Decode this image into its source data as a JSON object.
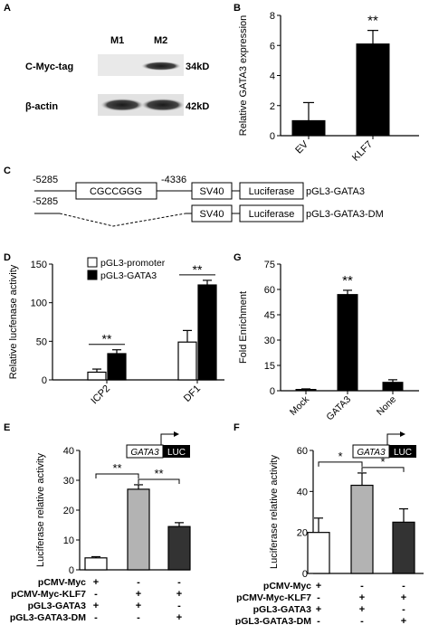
{
  "panels": {
    "A": {
      "letter": "A",
      "lanes": [
        "M1",
        "M2"
      ],
      "rows": [
        {
          "label": "C-Myc-tag",
          "size": "34kD"
        },
        {
          "label": "β-actin",
          "size": "42kD"
        }
      ]
    },
    "C": {
      "letter": "C",
      "row1": {
        "start": "-5285",
        "box": "CGCCGGG",
        "end": "-4336",
        "sv40": "SV40",
        "luc": "Luciferase",
        "name": "pGL3-GATA3"
      },
      "row2": {
        "start": "-5285",
        "sv40": "SV40",
        "luc": "Luciferase",
        "name": "pGL3-GATA3-DM"
      }
    },
    "E": {
      "letter": "E",
      "construct_gene": "GATA3",
      "construct_luc": "LUC",
      "table": [
        {
          "label": "pCMV-Myc",
          "marks": [
            "+",
            "-",
            "-"
          ]
        },
        {
          "label": "pCMV-Myc-KLF7",
          "marks": [
            "-",
            "+",
            "+"
          ]
        },
        {
          "label": "pGL3-GATA3",
          "marks": [
            "+",
            "+",
            "-"
          ]
        },
        {
          "label": "pGL3-GATA3-DM",
          "marks": [
            "-",
            "-",
            "+"
          ]
        }
      ]
    },
    "F": {
      "letter": "F",
      "construct_gene": "GATA3",
      "construct_luc": "LUC",
      "table": [
        {
          "label": "pCMV-Myc",
          "marks": [
            "+",
            "-",
            "-"
          ]
        },
        {
          "label": "pCMV-Myc-KLF7",
          "marks": [
            "-",
            "+",
            "+"
          ]
        },
        {
          "label": "pGL3-GATA3",
          "marks": [
            "+",
            "+",
            "-"
          ]
        },
        {
          "label": "pGL3-GATA3-DM",
          "marks": [
            "-",
            "-",
            "+"
          ]
        }
      ]
    }
  },
  "chart_data": [
    {
      "id": "B",
      "letter": "B",
      "type": "bar",
      "ylabel": "Relative GATA3 expression",
      "ylim": [
        0,
        8
      ],
      "yticks": [
        0,
        2,
        4,
        6,
        8
      ],
      "categories": [
        "EV",
        "KLF7"
      ],
      "values": [
        1.0,
        6.1
      ],
      "errors": [
        1.2,
        0.9
      ],
      "colors": [
        "#000000",
        "#000000"
      ],
      "significance": [
        {
          "bar": 1,
          "text": "**"
        }
      ]
    },
    {
      "id": "D",
      "letter": "D",
      "type": "bar",
      "ylabel": "Relative lucfenase activity",
      "ylim": [
        0,
        150
      ],
      "yticks": [
        0,
        50,
        100,
        150
      ],
      "categories": [
        "ICP2",
        "DF1"
      ],
      "series": [
        {
          "name": "pGL3-promoter",
          "values": [
            10,
            49
          ],
          "errors": [
            4,
            15
          ],
          "color": "#ffffff"
        },
        {
          "name": "pGL3-GATA3",
          "values": [
            34,
            123
          ],
          "errors": [
            5,
            6
          ],
          "color": "#000000"
        }
      ],
      "significance": [
        {
          "group": 0,
          "text": "**"
        },
        {
          "group": 1,
          "text": "**"
        }
      ]
    },
    {
      "id": "G",
      "letter": "G",
      "type": "bar",
      "ylabel": "Fold Enrichment",
      "ylim": [
        0,
        75
      ],
      "yticks": [
        0,
        15,
        30,
        45,
        60,
        75
      ],
      "categories": [
        "Mock",
        "GATA3",
        "None"
      ],
      "values": [
        0.8,
        57,
        5
      ],
      "errors": [
        0.3,
        2.5,
        1.5
      ],
      "colors": [
        "#000000",
        "#000000",
        "#000000"
      ],
      "significance": [
        {
          "bar": 1,
          "text": "**"
        }
      ]
    },
    {
      "id": "E",
      "letter": "E",
      "type": "bar",
      "ylabel": "Luciferase relative activity",
      "ylim": [
        0,
        40
      ],
      "yticks": [
        0,
        10,
        20,
        30,
        40
      ],
      "categories": [
        "",
        "",
        ""
      ],
      "values": [
        4,
        27,
        14.5
      ],
      "errors": [
        0.4,
        1.5,
        1.3
      ],
      "colors": [
        "#ffffff",
        "#b3b3b3",
        "#333333"
      ],
      "significance": [
        {
          "from": 0,
          "to": 1,
          "text": "**"
        },
        {
          "from": 1,
          "to": 2,
          "text": "**"
        }
      ]
    },
    {
      "id": "F",
      "letter": "F",
      "type": "bar",
      "ylabel": "Luciferase relative activity",
      "ylim": [
        0,
        60
      ],
      "yticks": [
        0,
        20,
        40,
        60
      ],
      "categories": [
        "",
        "",
        ""
      ],
      "values": [
        20,
        43,
        25
      ],
      "errors": [
        7,
        6,
        6.5
      ],
      "colors": [
        "#ffffff",
        "#b3b3b3",
        "#333333"
      ],
      "significance": [
        {
          "from": 0,
          "to": 1,
          "text": "*"
        },
        {
          "from": 1,
          "to": 2,
          "text": "*"
        }
      ]
    }
  ]
}
